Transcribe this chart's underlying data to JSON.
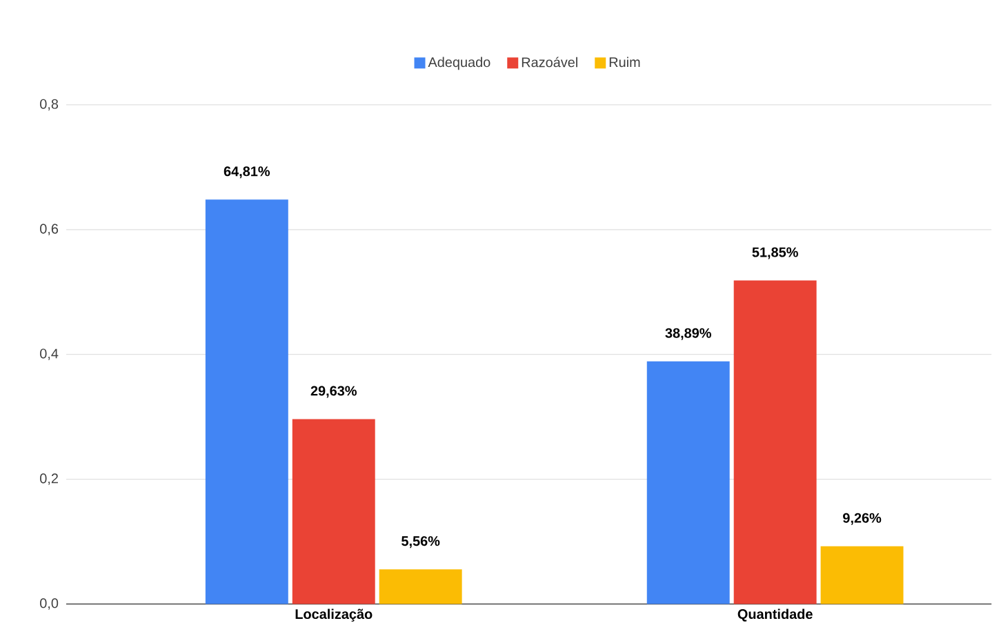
{
  "chart_data": {
    "type": "bar",
    "categories": [
      "Localização",
      "Quantidade"
    ],
    "series": [
      {
        "name": "Adequado",
        "color": "#4285f4",
        "values": [
          0.6481,
          0.3889
        ],
        "value_labels": [
          "64,81%",
          "38,89%"
        ]
      },
      {
        "name": "Razoável",
        "color": "#ea4335",
        "values": [
          0.2963,
          0.5185
        ],
        "value_labels": [
          "29,63%",
          "51,85%"
        ]
      },
      {
        "name": "Ruim",
        "color": "#fbbc04",
        "values": [
          0.0556,
          0.0926
        ],
        "value_labels": [
          "5,56%",
          "9,26%"
        ]
      }
    ],
    "ylim": [
      0,
      0.8
    ],
    "yticks": [
      {
        "value": 0,
        "label": "0,0"
      },
      {
        "value": 0.2,
        "label": "0,2"
      },
      {
        "value": 0.4,
        "label": "0,4"
      },
      {
        "value": 0.6,
        "label": "0,6"
      },
      {
        "value": 0.8,
        "label": "0,8"
      }
    ],
    "grid": "y",
    "legend": "top"
  }
}
